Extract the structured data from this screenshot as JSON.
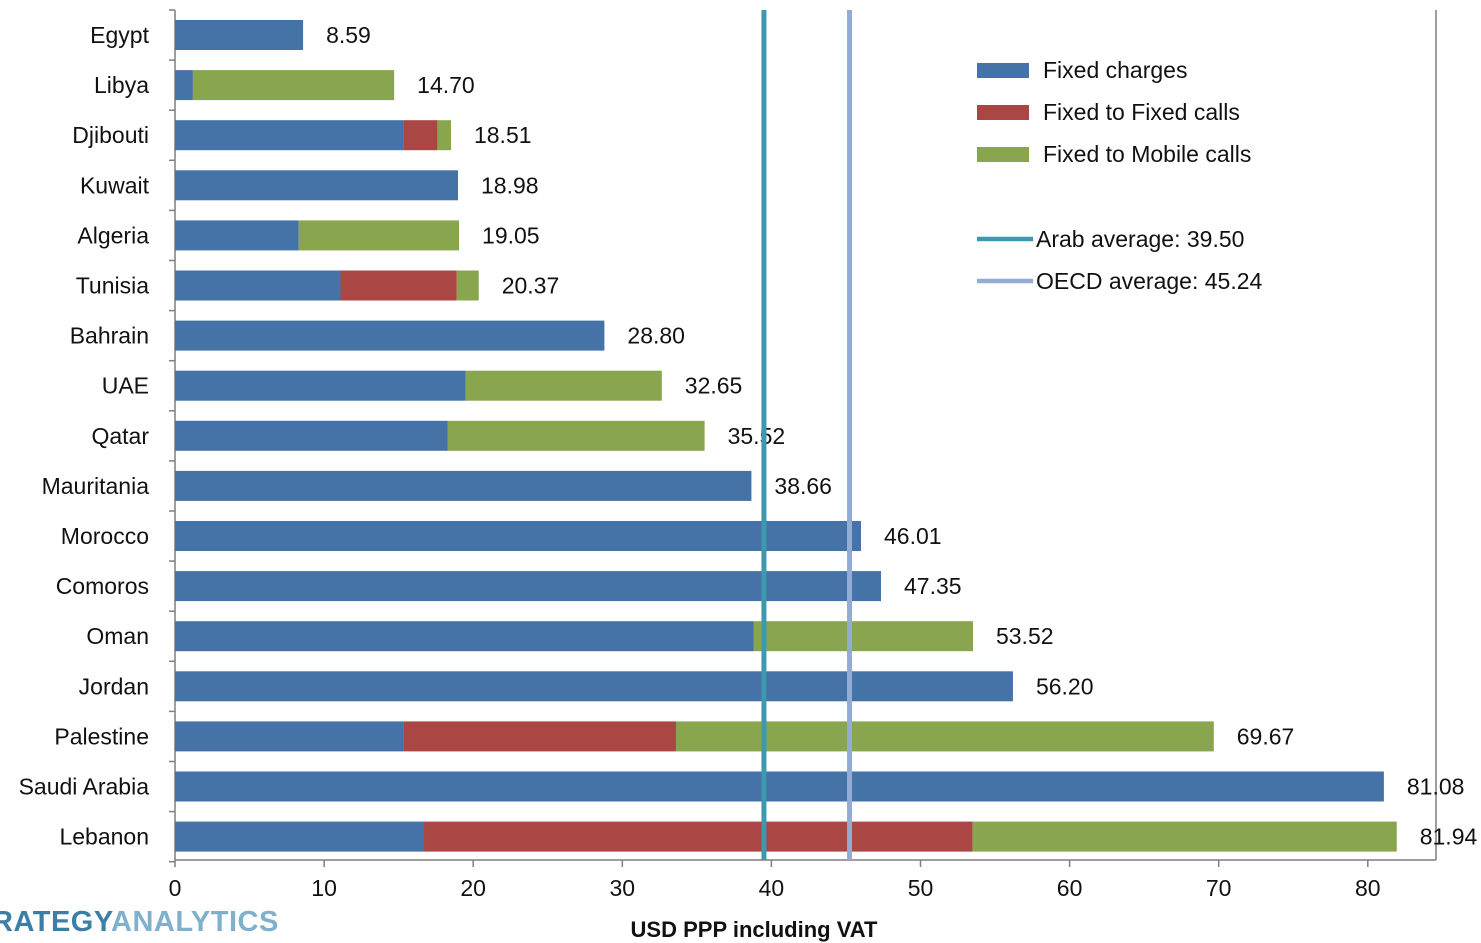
{
  "chart_data": {
    "type": "bar",
    "orientation": "horizontal",
    "stacked": true,
    "xlabel": "USD PPP including VAT",
    "xlim": [
      0,
      85
    ],
    "xticks": [
      0,
      10,
      20,
      30,
      40,
      50,
      60,
      70,
      80
    ],
    "categories": [
      "Egypt",
      "Libya",
      "Djibouti",
      "Kuwait",
      "Algeria",
      "Tunisia",
      "Bahrain",
      "UAE",
      "Qatar",
      "Mauritania",
      "Morocco",
      "Comoros",
      "Oman",
      "Jordan",
      "Palestine",
      "Saudi Arabia",
      "Lebanon"
    ],
    "series": [
      {
        "name": "Fixed charges",
        "color": "#4572a7",
        "values": [
          8.59,
          1.2,
          15.3,
          18.98,
          8.3,
          11.1,
          28.8,
          19.5,
          18.3,
          38.66,
          46.01,
          47.35,
          38.8,
          56.2,
          15.3,
          81.08,
          16.7
        ]
      },
      {
        "name": "Fixed to Fixed calls",
        "color": "#aa4643",
        "values": [
          0,
          0,
          2.3,
          0,
          0,
          7.8,
          0,
          0,
          0,
          0,
          0,
          0,
          0,
          0,
          18.3,
          0,
          36.8
        ]
      },
      {
        "name": "Fixed to Mobile calls",
        "color": "#89a54e",
        "values": [
          0,
          13.5,
          0.91,
          0,
          10.75,
          1.47,
          0,
          13.15,
          17.22,
          0,
          0,
          0,
          14.72,
          0,
          36.07,
          0,
          28.44
        ]
      }
    ],
    "totals": [
      "8.59",
      "14.70",
      "18.51",
      "18.98",
      "19.05",
      "20.37",
      "28.80",
      "32.65",
      "35.52",
      "38.66",
      "46.01",
      "47.35",
      "53.52",
      "56.20",
      "69.67",
      "81.08",
      "81.94"
    ],
    "reference_lines": [
      {
        "label": "Arab average: 39.50",
        "value": 39.5,
        "color": "#3e98ae"
      },
      {
        "label": "OECD average: 45.24",
        "value": 45.24,
        "color": "#93acd3"
      }
    ],
    "legend_position": "top-right",
    "grid": false
  },
  "brand": {
    "part1": "RATEGY",
    "part2": "ANALYTICS"
  }
}
